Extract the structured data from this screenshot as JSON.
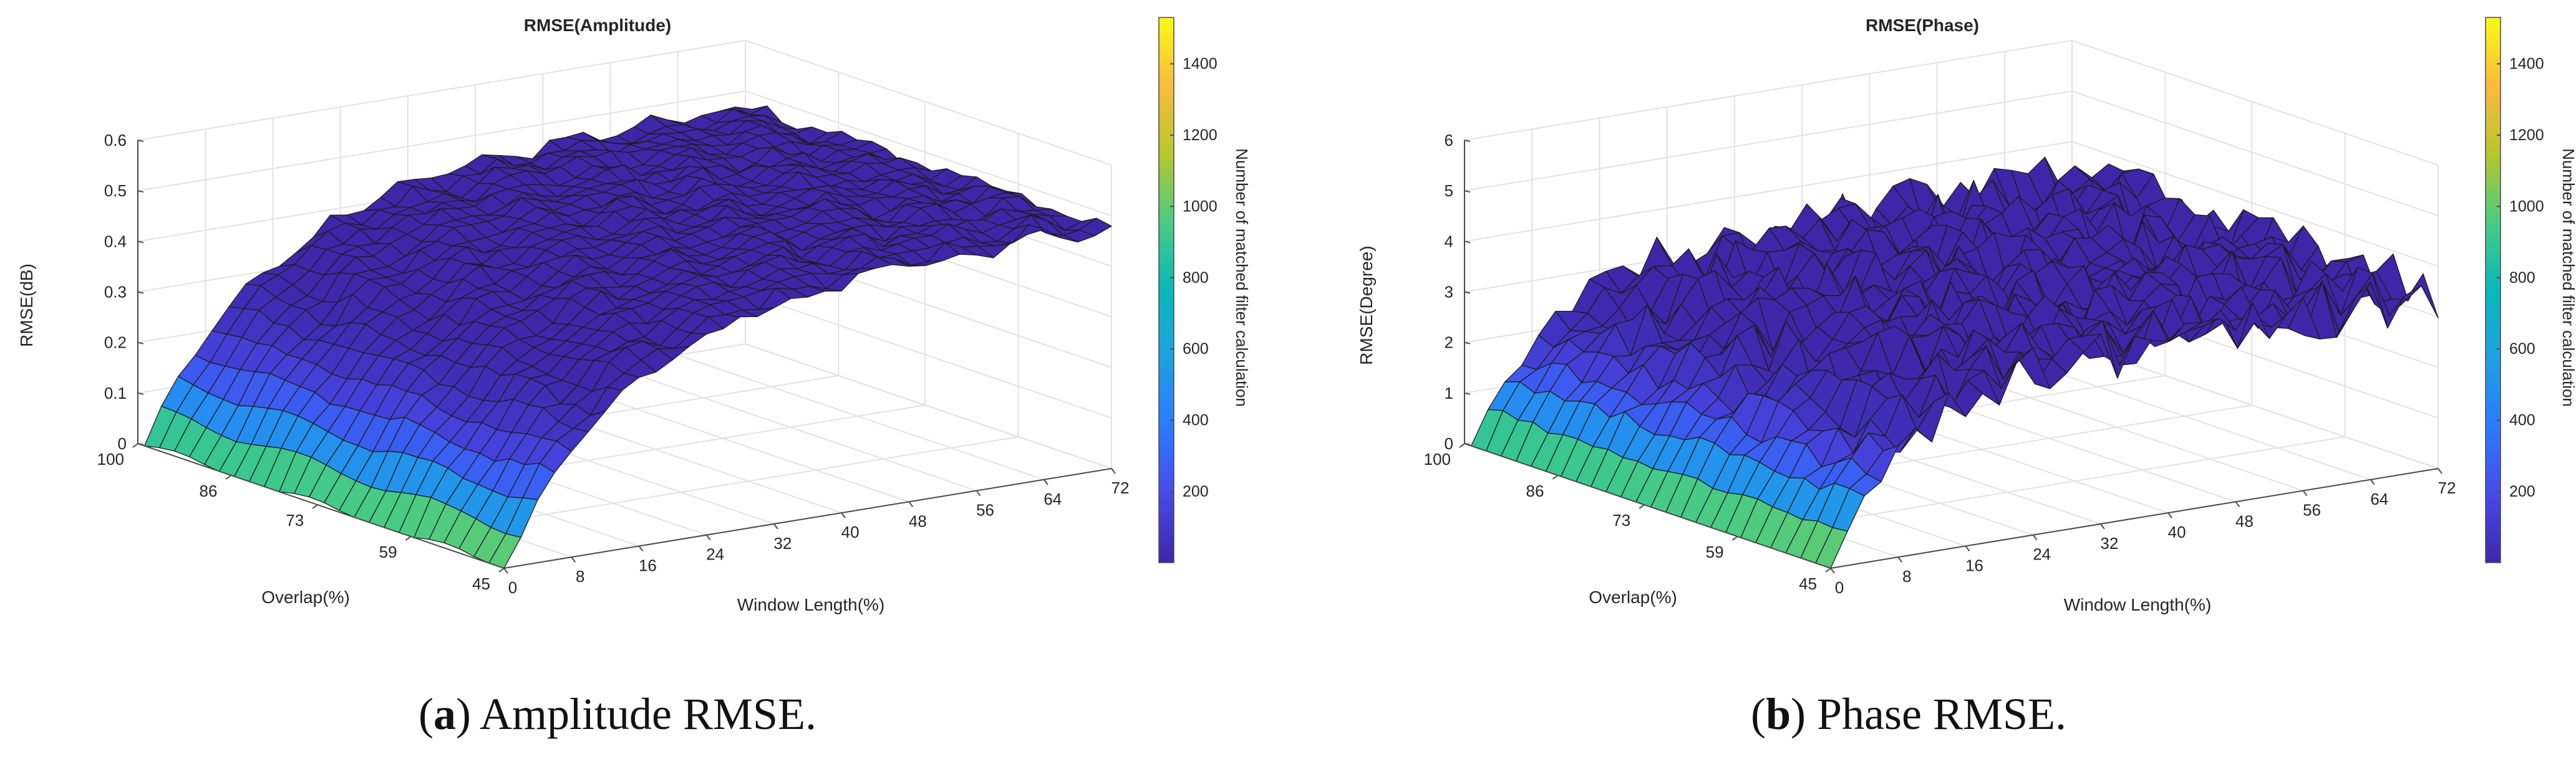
{
  "figures": [
    {
      "label": "a",
      "caption": "Amplitude RMSE.",
      "chart_data": {
        "type": "surface3d",
        "title": "RMSE(Amplitude)",
        "xlabel": "Window Length(%)",
        "ylabel": "Overlap(%)",
        "zlabel": "RMSE(dB)",
        "x_ticks": [
          0,
          8,
          16,
          24,
          32,
          40,
          48,
          56,
          64,
          72
        ],
        "y_ticks": [
          100,
          86,
          73,
          59,
          45
        ],
        "z_ticks": [
          0,
          0.1,
          0.2,
          0.3,
          0.4,
          0.5,
          0.6
        ],
        "xlim": [
          0,
          72
        ],
        "ylim": [
          45,
          100
        ],
        "zlim": [
          0,
          0.6
        ],
        "surface_extent": {
          "window_length": [
            0,
            72
          ],
          "overlap": [
            45,
            99
          ]
        },
        "zmax_approx": 0.48,
        "rise_scale": 14,
        "jitter": 0.012,
        "colorbar": {
          "label": "Number of matched filter calculation",
          "ticks": [
            200,
            400,
            600,
            800,
            1000,
            1200,
            1400
          ],
          "range": [
            1,
            1530
          ],
          "colormap": "parula"
        }
      }
    },
    {
      "label": "b",
      "caption": "Phase RMSE.",
      "chart_data": {
        "type": "surface3d",
        "title": "RMSE(Phase)",
        "xlabel": "Window Length(%)",
        "ylabel": "Overlap(%)",
        "zlabel": "RMSE(Degree)",
        "x_ticks": [
          0,
          8,
          16,
          24,
          32,
          40,
          48,
          56,
          64,
          72
        ],
        "y_ticks": [
          100,
          86,
          73,
          59,
          45
        ],
        "z_ticks": [
          0,
          1,
          2,
          3,
          4,
          5,
          6
        ],
        "xlim": [
          0,
          72
        ],
        "ylim": [
          45,
          100
        ],
        "zlim": [
          0,
          6
        ],
        "surface_extent": {
          "window_length": [
            0,
            72
          ],
          "overlap": [
            45,
            99
          ]
        },
        "zmax_approx": 3.4,
        "rise_scale": 9,
        "jitter": 0.55,
        "colorbar": {
          "label": "Number of matched filter calculation",
          "ticks": [
            200,
            400,
            600,
            800,
            1000,
            1200,
            1400
          ],
          "range": [
            1,
            1530
          ],
          "colormap": "parula"
        }
      }
    }
  ]
}
